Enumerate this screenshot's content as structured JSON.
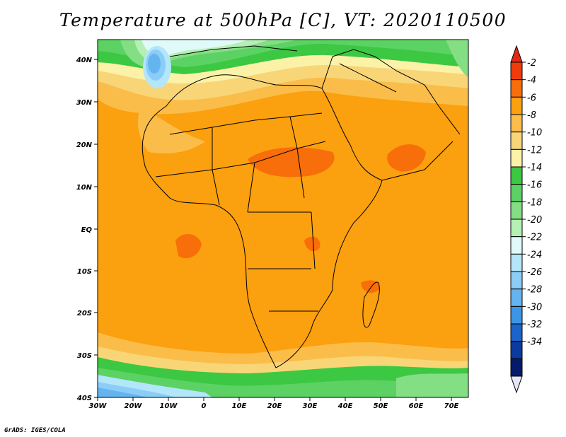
{
  "title": "Temperature at 500hPa [C], VT: 2020110500",
  "footer": "GrADS: IGES/COLA",
  "map": {
    "lon_range": [
      -30,
      75
    ],
    "lat_range": [
      -40,
      45
    ],
    "lon_ticks": [
      "30W",
      "20W",
      "10W",
      "0",
      "10E",
      "20E",
      "30E",
      "40E",
      "50E",
      "60E",
      "70E"
    ],
    "lat_ticks": [
      "40N",
      "30N",
      "20N",
      "10N",
      "EQ",
      "10S",
      "20S",
      "30S",
      "40S"
    ]
  },
  "colorbar": {
    "labels": [
      "-2",
      "-4",
      "-6",
      "-8",
      "-10",
      "-12",
      "-14",
      "-16",
      "-18",
      "-20",
      "-22",
      "-24",
      "-26",
      "-28",
      "-30",
      "-32",
      "-34"
    ],
    "colors": [
      "#f03c0c",
      "#f86e0a",
      "#fba00e",
      "#fbbd4a",
      "#f8d678",
      "#fbf2a8",
      "#3cc842",
      "#5cd264",
      "#84de84",
      "#b4f0b4",
      "#e0fafa",
      "#b4e6fa",
      "#8ccdf8",
      "#64b4f0",
      "#3c96e6",
      "#1c64cc",
      "#0a3ca0",
      "#061a6c"
    ],
    "top_tri_color": "#e22812",
    "bottom_tri_color": "#e6e6fa"
  }
}
